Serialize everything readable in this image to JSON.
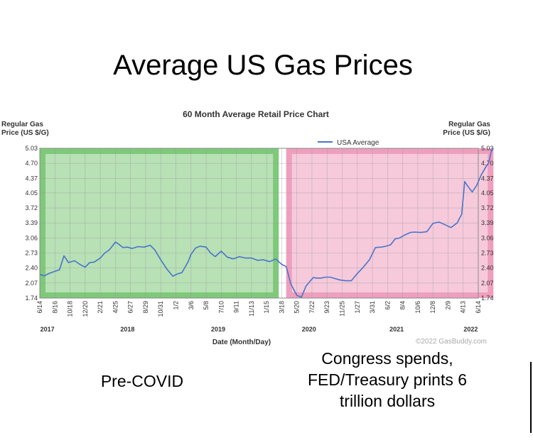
{
  "page": {
    "main_title": "Average US Gas Prices",
    "caption_left": "Pre-COVID",
    "caption_right": "Congress spends, FED/Treasury prints 6 trillion dollars"
  },
  "chart_data": {
    "type": "line",
    "title": "60 Month Average Retail Price Chart",
    "ylabel_left": "Regular Gas Price (US $/G)",
    "ylabel_right": "Regular Gas Price (US $/G)",
    "xlabel": "Date (Month/Day)",
    "ylim": [
      1.74,
      5.03
    ],
    "y_ticks": [
      "5.03",
      "4.70",
      "4.37",
      "4.05",
      "3.72",
      "3.39",
      "3.06",
      "2.73",
      "2.40",
      "2.07",
      "1.74"
    ],
    "x_tick_labels": [
      "6/14",
      "8/16",
      "10/18",
      "12/20",
      "2/21",
      "4/25",
      "6/27",
      "8/29",
      "10/31",
      "1/2",
      "3/6",
      "5/8",
      "7/10",
      "9/11",
      "11/13",
      "1/15",
      "3/18",
      "5/20",
      "7/22",
      "9/23",
      "11/25",
      "1/27",
      "3/31",
      "6/2",
      "8/4",
      "10/6",
      "12/8",
      "2/9",
      "4/13",
      "6/14"
    ],
    "year_labels": [
      {
        "label": "2017",
        "tick": 0.5
      },
      {
        "label": "2018",
        "tick": 5.8
      },
      {
        "label": "2019",
        "tick": 11.8
      },
      {
        "label": "2020",
        "tick": 17.8
      },
      {
        "label": "2021",
        "tick": 23.6
      },
      {
        "label": "2022",
        "tick": 28.5
      }
    ],
    "series": [
      {
        "name": "USA Average",
        "color": "#4a74c9",
        "x": [
          0,
          0.3,
          0.6,
          1.0,
          1.3,
          1.6,
          1.9,
          2.3,
          2.7,
          3.0,
          3.3,
          3.6,
          4.0,
          4.3,
          4.6,
          5.0,
          5.2,
          5.5,
          5.8,
          6.1,
          6.5,
          6.9,
          7.3,
          7.6,
          8.0,
          8.4,
          8.8,
          9.1,
          9.4,
          9.8,
          10.0,
          10.3,
          10.6,
          11.0,
          11.3,
          11.6,
          12.0,
          12.4,
          12.8,
          13.2,
          13.6,
          14.0,
          14.4,
          14.8,
          15.2,
          15.6,
          16.0,
          16.3,
          16.6,
          17.0,
          17.3,
          17.6,
          17.9,
          18.1,
          18.3,
          18.6,
          18.9,
          19.2,
          19.5,
          19.8,
          20.2,
          20.6,
          21.0,
          21.4,
          21.8,
          22.2,
          22.6,
          22.9,
          23.2,
          23.5,
          23.8,
          24.1,
          24.5,
          24.8,
          25.2,
          25.6,
          26.0,
          26.4,
          26.8,
          27.2,
          27.6,
          27.9,
          28.1,
          28.3,
          28.6,
          28.9,
          29.2,
          29.5,
          29.7,
          29.85,
          30.0
        ],
        "values": [
          2.26,
          2.23,
          2.28,
          2.33,
          2.36,
          2.67,
          2.52,
          2.56,
          2.47,
          2.42,
          2.52,
          2.53,
          2.62,
          2.73,
          2.8,
          2.97,
          2.93,
          2.85,
          2.86,
          2.83,
          2.87,
          2.86,
          2.9,
          2.8,
          2.58,
          2.38,
          2.22,
          2.27,
          2.3,
          2.53,
          2.7,
          2.84,
          2.88,
          2.86,
          2.73,
          2.65,
          2.77,
          2.64,
          2.6,
          2.65,
          2.62,
          2.62,
          2.57,
          2.58,
          2.54,
          2.6,
          2.48,
          2.43,
          2.05,
          1.8,
          1.76,
          2.0,
          2.12,
          2.19,
          2.18,
          2.18,
          2.2,
          2.2,
          2.17,
          2.14,
          2.12,
          2.12,
          2.28,
          2.42,
          2.58,
          2.85,
          2.86,
          2.88,
          2.91,
          3.04,
          3.06,
          3.12,
          3.18,
          3.19,
          3.18,
          3.2,
          3.38,
          3.41,
          3.35,
          3.29,
          3.39,
          3.58,
          4.3,
          4.2,
          4.07,
          4.22,
          4.45,
          4.62,
          4.72,
          4.96,
          5.03
        ]
      }
    ],
    "legend": "top-center",
    "grid": true,
    "highlight_regions": [
      {
        "name": "pre-covid",
        "start_tick": 0,
        "end_tick": 15.8,
        "color": "#7ec97a"
      },
      {
        "name": "post-covid",
        "start_tick": 16.3,
        "end_tick": 30.0,
        "color": "#ef9fbe"
      }
    ],
    "watermark": "©2022 GasBuddy.com"
  }
}
